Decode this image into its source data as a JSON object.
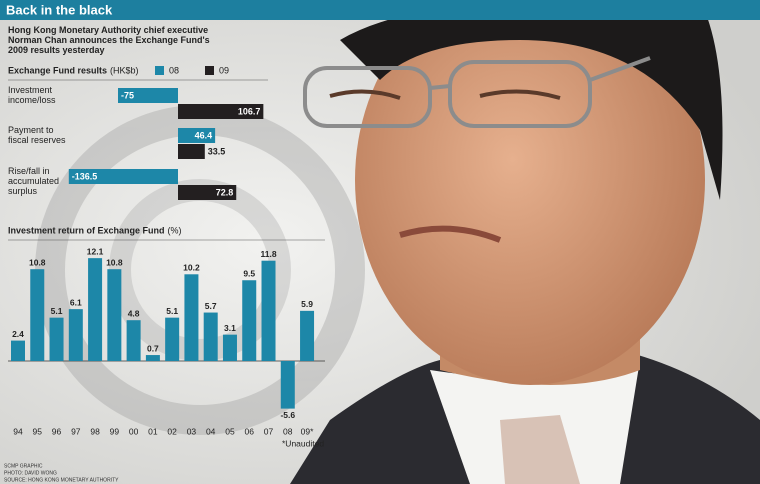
{
  "header": {
    "title": "Back in the black",
    "caption": "Hong Kong Monetary Authority chief executive Norman Chan announces the Exchange Fund's 2009 results yesterday"
  },
  "chart_data": [
    {
      "type": "hbar",
      "title": "Exchange Fund results",
      "unit": "(HK$b)",
      "categories": [
        "Investment income/loss",
        "Payment to fiscal reserves",
        "Rise/fall in accumulated surplus"
      ],
      "series": [
        {
          "name": "08",
          "color": "#1d87a8",
          "values": [
            -75,
            46.4,
            -136.5
          ]
        },
        {
          "name": "09",
          "color": "#231f20",
          "values": [
            106.7,
            33.5,
            72.8
          ]
        }
      ]
    },
    {
      "type": "bar",
      "title": "Investment return of Exchange Fund",
      "unit": "(%)",
      "categories": [
        "94",
        "95",
        "96",
        "97",
        "98",
        "99",
        "00",
        "01",
        "02",
        "03",
        "04",
        "05",
        "06",
        "07",
        "08",
        "09*"
      ],
      "values": [
        2.4,
        10.8,
        5.1,
        6.1,
        12.1,
        10.8,
        4.8,
        0.7,
        5.1,
        10.2,
        5.7,
        3.1,
        9.5,
        11.8,
        -5.6,
        5.9
      ],
      "color": "#1d87a8",
      "note": "*Unaudited"
    }
  ],
  "footer": {
    "credits": [
      "SCMP GRAPHIC",
      "PHOTO: DAVID WONG",
      "SOURCE: HONG KONG MONETARY AUTHORITY"
    ]
  }
}
